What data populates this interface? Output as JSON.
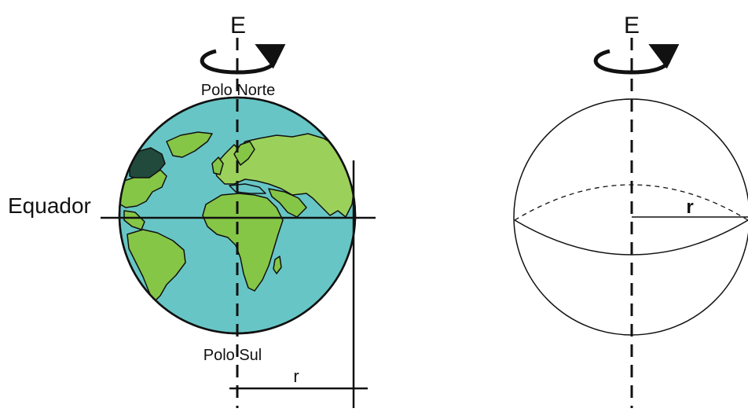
{
  "left_figure": {
    "axis_label": "E",
    "north_pole": "Polo Norte",
    "south_pole": "Polo Sul",
    "equator": "Equador",
    "radius": "r"
  },
  "right_figure": {
    "axis_label": "E",
    "radius": "r"
  },
  "colors": {
    "ocean": "#67c6c5",
    "land": "#86c646",
    "land_light": "#9bd15a",
    "land_dark": "#214a3c",
    "stroke": "#111111"
  }
}
